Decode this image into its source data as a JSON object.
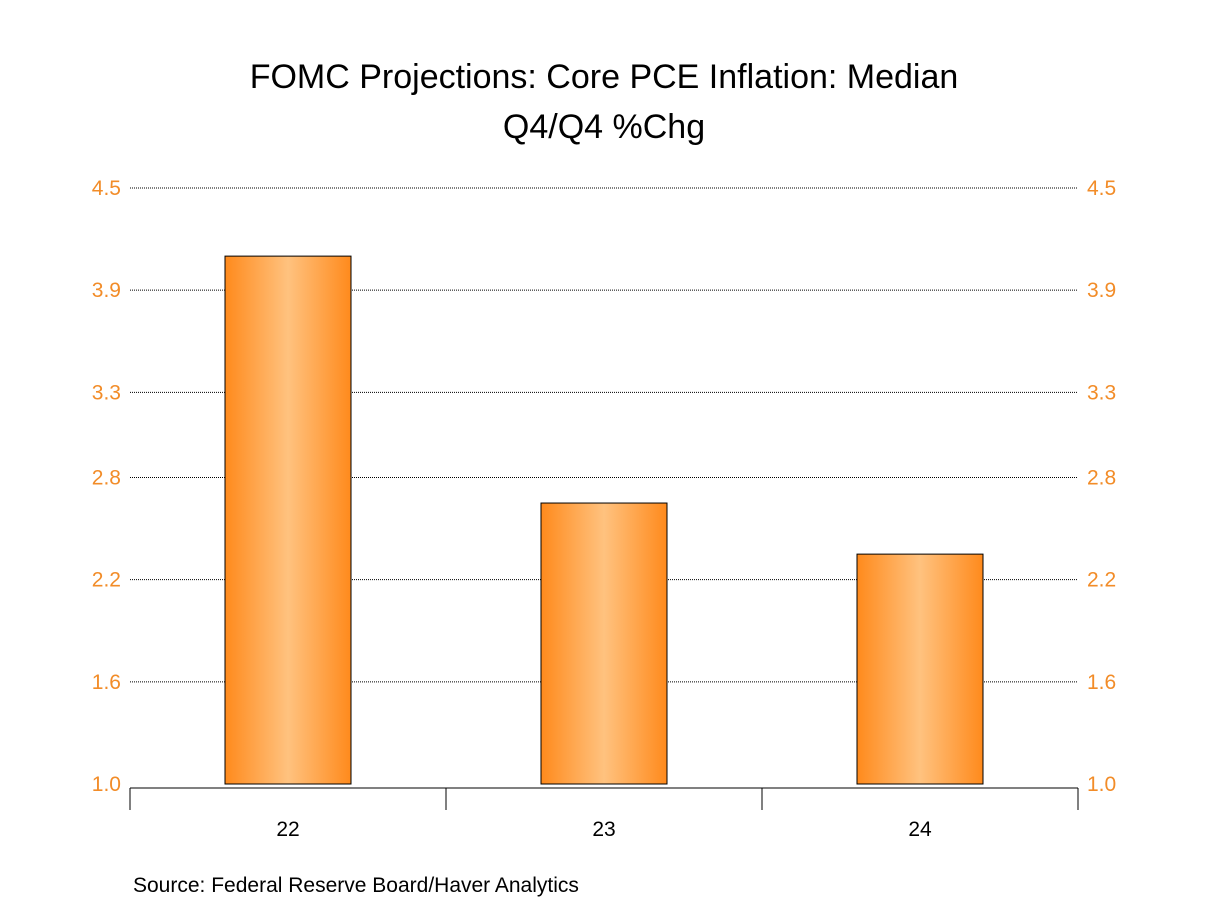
{
  "chart_data": {
    "type": "bar",
    "title_lines": [
      "FOMC Projections: Core PCE Inflation: Median",
      "Q4/Q4 %Chg"
    ],
    "categories": [
      "22",
      "23",
      "24"
    ],
    "values": [
      4.1,
      2.65,
      2.35
    ],
    "ylim": [
      1.0,
      4.5
    ],
    "yticks": [
      "1.0",
      "1.6",
      "2.2",
      "2.8",
      "3.3",
      "3.9",
      "4.5"
    ],
    "ytick_values": [
      1.0,
      1.6,
      2.2,
      2.8,
      3.3,
      3.9,
      4.5
    ],
    "axes": "left-and-right",
    "grid": true,
    "source": "Source:  Federal Reserve Board/Haver Analytics",
    "colors": {
      "bar": "#ff8a1c",
      "bar_highlight": "#ffc27f",
      "tick_label": "#f28c28",
      "gridline": "#000000"
    }
  }
}
